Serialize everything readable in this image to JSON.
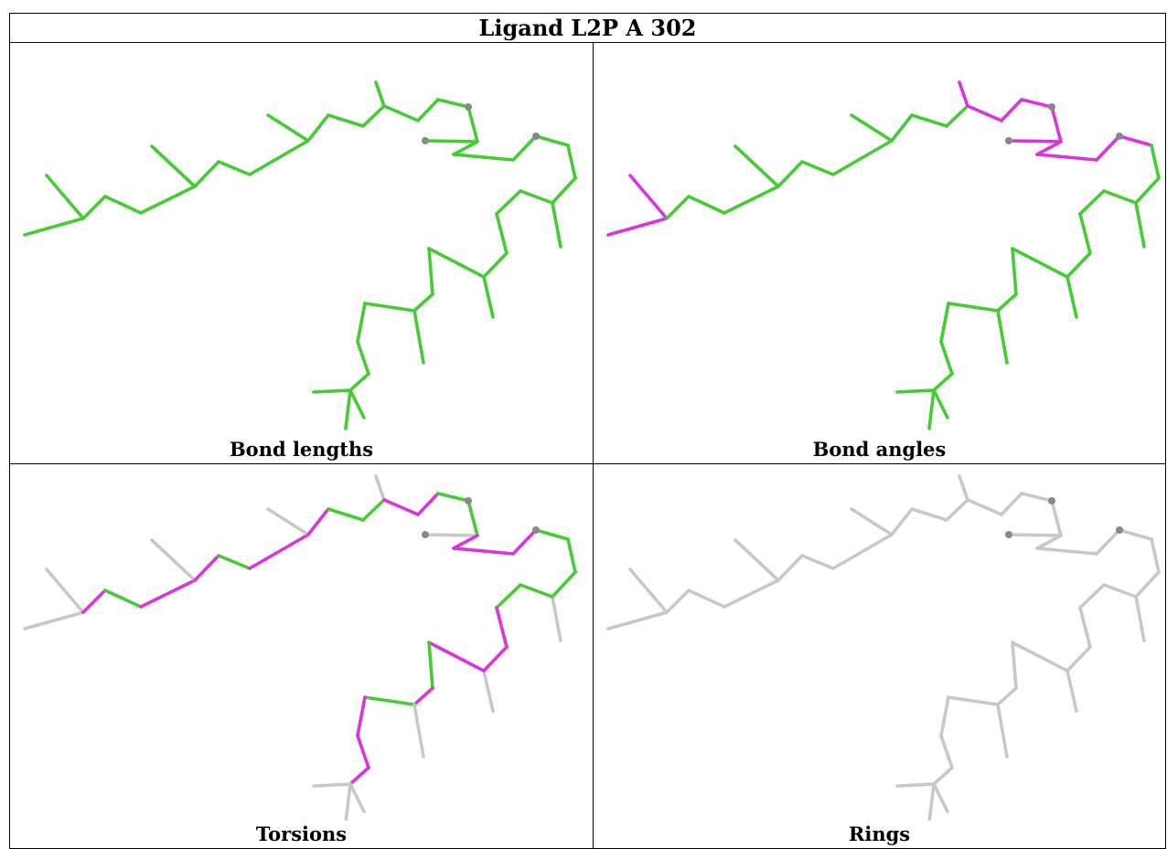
{
  "title": "Ligand L2P A 302",
  "panels": [
    {
      "id": "bond-lengths",
      "caption": "Bond lengths"
    },
    {
      "id": "bond-angles",
      "caption": "Bond angles"
    },
    {
      "id": "torsions",
      "caption": "Torsions"
    },
    {
      "id": "rings",
      "caption": "Rings"
    }
  ],
  "colors": {
    "ok": "#44cc33",
    "outlier": "#dd33dd",
    "neutral": "#c8c8c8",
    "atom": "#888888"
  }
}
